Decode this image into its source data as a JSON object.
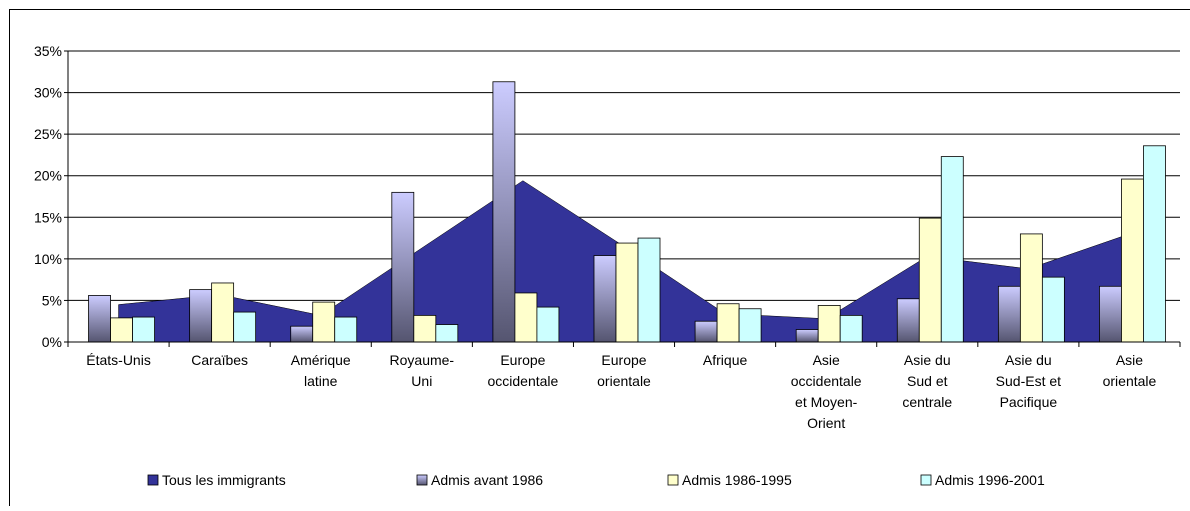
{
  "chart_data": {
    "type": "bar",
    "categories": [
      "États-Unis",
      "Caraïbes",
      "Amérique\nlatine",
      "Royaume-\nUni",
      "Europe\noccidentale",
      "Europe\norientale",
      "Afrique",
      "Asie\noccidentale\net Moyen-\nOrient",
      "Asie du\nSud et\ncentrale",
      "Asie du\nSud-Est et\nPacifique",
      "Asie\norientale"
    ],
    "series": [
      {
        "name": "Tous les immigrants",
        "type": "area",
        "color": "#333399",
        "values": [
          4.5,
          5.7,
          3.2,
          11.3,
          19.4,
          11.5,
          3.4,
          2.8,
          10.3,
          8.8,
          13.0
        ]
      },
      {
        "name": "Admis avant 1986",
        "type": "bar",
        "color": "#ccccff",
        "values": [
          5.6,
          6.3,
          1.9,
          18.0,
          31.3,
          10.4,
          2.5,
          1.5,
          5.2,
          6.7,
          6.7
        ]
      },
      {
        "name": "Admis 1986-1995",
        "type": "bar",
        "color": "#ffffcc",
        "values": [
          2.9,
          7.1,
          4.8,
          3.2,
          5.9,
          11.9,
          4.6,
          4.4,
          14.9,
          13.0,
          19.6
        ]
      },
      {
        "name": "Admis 1996-2001",
        "type": "bar",
        "color": "#ccffff",
        "values": [
          3.0,
          3.6,
          3.0,
          2.1,
          4.2,
          12.5,
          4.0,
          3.2,
          22.3,
          7.8,
          23.6
        ]
      }
    ],
    "ylim": [
      0,
      35
    ],
    "yticks": [
      {
        "value": 0,
        "label": "0%"
      },
      {
        "value": 5,
        "label": "5%"
      },
      {
        "value": 10,
        "label": "10%"
      },
      {
        "value": 15,
        "label": "15%"
      },
      {
        "value": 20,
        "label": "20%"
      },
      {
        "value": 25,
        "label": "25%"
      },
      {
        "value": 30,
        "label": "30%"
      },
      {
        "value": 35,
        "label": "35%"
      }
    ],
    "grid": true,
    "legend": "bottom"
  }
}
